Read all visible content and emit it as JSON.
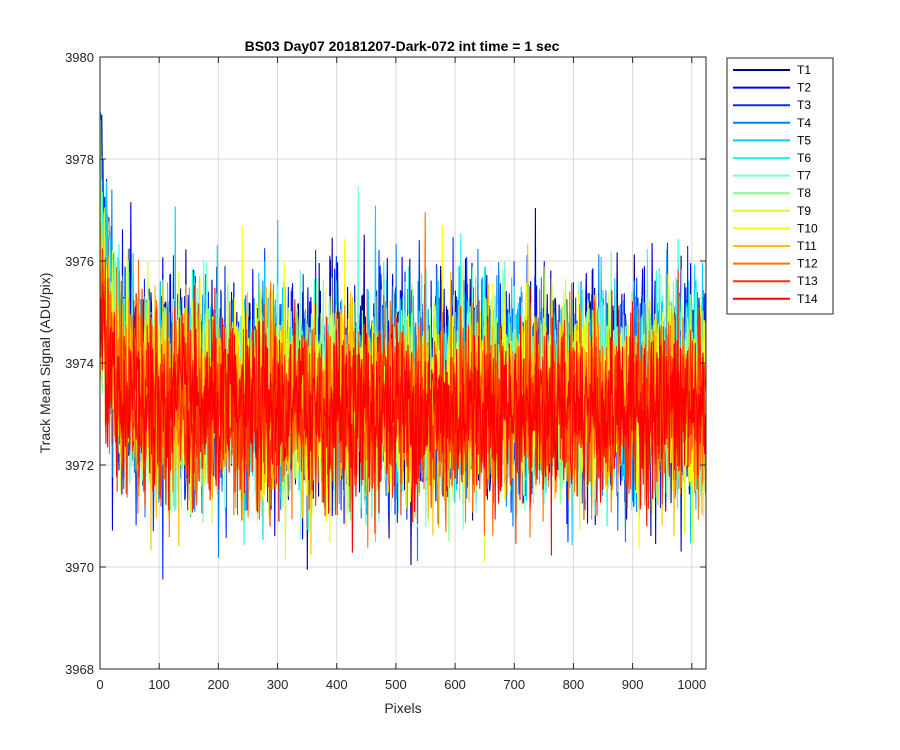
{
  "chart_data": {
    "type": "line",
    "title": "BS03 Day07 20181207-Dark-072 int time = 1 sec",
    "xlabel": "Pixels",
    "ylabel": "Track Mean Signal (ADU/pix)",
    "xlim": [
      0,
      1024
    ],
    "ylim": [
      3968,
      3980
    ],
    "xticks": [
      0,
      100,
      200,
      300,
      400,
      500,
      600,
      700,
      800,
      900,
      1000
    ],
    "yticks": [
      3968,
      3970,
      3972,
      3974,
      3976,
      3978,
      3980
    ],
    "grid": true,
    "legend_position": "outside-top-right",
    "num_points": 1024,
    "mean_level": 3973.2,
    "series": [
      {
        "name": "T1",
        "color": "#00008F",
        "mean": 3973.6,
        "std": 1.05
      },
      {
        "name": "T2",
        "color": "#0000DF",
        "mean": 3973.6,
        "std": 1.05
      },
      {
        "name": "T3",
        "color": "#0030FF",
        "mean": 3973.5,
        "std": 1.0
      },
      {
        "name": "T4",
        "color": "#0080FF",
        "mean": 3973.5,
        "std": 1.0
      },
      {
        "name": "T5",
        "color": "#00CFFF",
        "mean": 3973.5,
        "std": 1.0
      },
      {
        "name": "T6",
        "color": "#20FFDF",
        "mean": 3973.4,
        "std": 0.95
      },
      {
        "name": "T7",
        "color": "#70FFD0",
        "mean": 3973.4,
        "std": 0.95
      },
      {
        "name": "T8",
        "color": "#80FF80",
        "mean": 3973.3,
        "std": 0.95
      },
      {
        "name": "T9",
        "color": "#CFFF30",
        "mean": 3973.3,
        "std": 0.95
      },
      {
        "name": "T10",
        "color": "#FFFF00",
        "mean": 3973.3,
        "std": 0.95
      },
      {
        "name": "T11",
        "color": "#FFBF00",
        "mean": 3973.2,
        "std": 0.95
      },
      {
        "name": "T12",
        "color": "#FF7000",
        "mean": 3973.1,
        "std": 0.9
      },
      {
        "name": "T13",
        "color": "#FF3000",
        "mean": 3973.1,
        "std": 0.9
      },
      {
        "name": "T14",
        "color": "#FF0000",
        "mean": 3973.1,
        "std": 0.85
      }
    ]
  }
}
